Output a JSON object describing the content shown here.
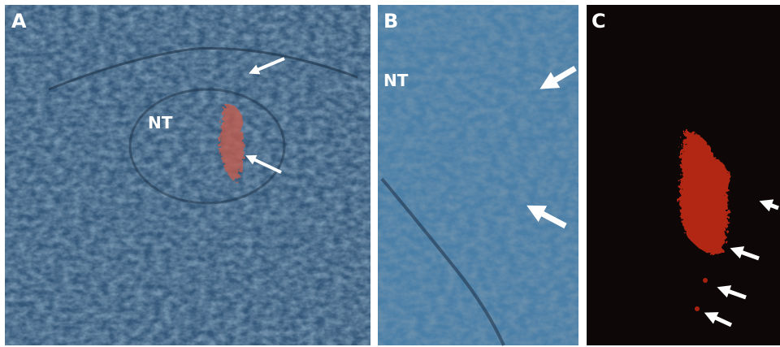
{
  "panels": [
    {
      "label": "A",
      "annotations": [
        "NT"
      ]
    },
    {
      "label": "B",
      "annotations": [
        "NT"
      ]
    },
    {
      "label": "C"
    }
  ]
}
